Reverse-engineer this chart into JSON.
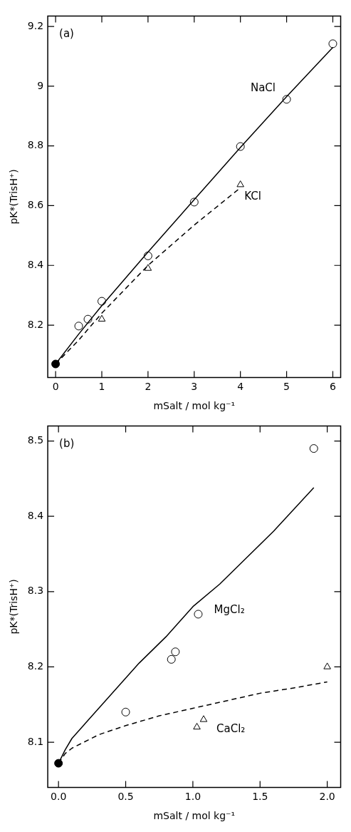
{
  "chart_data": [
    {
      "type": "scatter",
      "title": "(a)",
      "xlabel": "mSalt / mol kg⁻¹",
      "ylabel": "pK*(TrisH⁺)",
      "xlim": [
        -0.17,
        6.17
      ],
      "ylim": [
        8.025,
        9.235
      ],
      "xticks": [
        0,
        1,
        2,
        3,
        4,
        5,
        6
      ],
      "yticks": [
        8.2,
        8.4,
        8.6,
        8.8,
        9.0,
        9.2
      ],
      "grid": false,
      "legend": false,
      "series": [
        {
          "type": "line",
          "color": "#000000",
          "line_style": "solid",
          "marker": "none",
          "x": [
            0,
            0.5,
            1,
            2,
            3,
            4,
            5,
            6
          ],
          "values": [
            8.07,
            8.17,
            8.265,
            8.445,
            8.62,
            8.795,
            8.965,
            9.13
          ]
        },
        {
          "type": "line",
          "color": "#000000",
          "line_style": "dashed",
          "marker": "none",
          "x": [
            0,
            0.5,
            1,
            2,
            3,
            4
          ],
          "values": [
            8.07,
            8.15,
            8.24,
            8.4,
            8.535,
            8.66
          ]
        },
        {
          "color": "#000000",
          "marker": "circle",
          "x": [
            0.5,
            0.7,
            1,
            2,
            3,
            4,
            5,
            6
          ],
          "values": [
            8.197,
            8.22,
            8.28,
            8.432,
            8.612,
            8.798,
            8.956,
            9.142
          ]
        },
        {
          "color": "#000000",
          "marker": "triangle",
          "x": [
            1,
            2,
            4
          ],
          "values": [
            8.22,
            8.39,
            8.67
          ]
        },
        {
          "color": "#000000",
          "colors": [
            "#000000"
          ],
          "marker": "circle",
          "x": [
            0
          ],
          "values": [
            8.07
          ]
        }
      ],
      "annotations": [
        "NaCl",
        "KCl"
      ]
    },
    {
      "type": "scatter",
      "title": "(b)",
      "xlabel": "mSalt / mol kg⁻¹",
      "ylabel": "pK*(TrisH⁺)",
      "xlim": [
        -0.08,
        2.1
      ],
      "ylim": [
        8.04,
        8.52
      ],
      "xticks": [
        {
          "value": 0,
          "label": "0.0"
        },
        0.5,
        {
          "value": 1,
          "label": "1.0"
        },
        1.5,
        {
          "value": 2,
          "label": "2.0"
        }
      ],
      "yticks": [
        8.1,
        8.2,
        8.3,
        8.4,
        8.5
      ],
      "grid": false,
      "legend": false,
      "series": [
        {
          "type": "line",
          "color": "#000000",
          "line_style": "solid",
          "marker": "none",
          "x": [
            0,
            0.05,
            0.1,
            0.2,
            0.4,
            0.6,
            0.8,
            1.0,
            1.2,
            1.4,
            1.6,
            1.9
          ],
          "values": [
            8.072,
            8.09,
            8.105,
            8.125,
            8.165,
            8.205,
            8.24,
            8.28,
            8.31,
            8.345,
            8.38,
            8.438
          ]
        },
        {
          "type": "line",
          "color": "#000000",
          "line_style": "dashed",
          "marker": "none",
          "x": [
            0,
            0.05,
            0.1,
            0.3,
            0.5,
            0.75,
            1.0,
            1.25,
            1.5,
            1.75,
            2.0
          ],
          "values": [
            8.072,
            8.085,
            8.092,
            8.11,
            8.122,
            8.135,
            8.145,
            8.155,
            8.165,
            8.172,
            8.18
          ]
        },
        {
          "color": "#000000",
          "marker": "circle",
          "x": [
            0.5,
            0.84,
            0.87,
            1.04,
            1.9
          ],
          "values": [
            8.14,
            8.21,
            8.22,
            8.27,
            8.49
          ]
        },
        {
          "color": "#000000",
          "marker": "triangle",
          "x": [
            1.03,
            1.08,
            2.0
          ],
          "values": [
            8.12,
            8.13,
            8.2
          ]
        },
        {
          "color": "#000000",
          "colors": [
            "#000000"
          ],
          "marker": "circle",
          "x": [
            0
          ],
          "values": [
            8.072
          ]
        }
      ],
      "annotations": [
        "MgCl₂",
        "CaCl₂"
      ]
    }
  ]
}
